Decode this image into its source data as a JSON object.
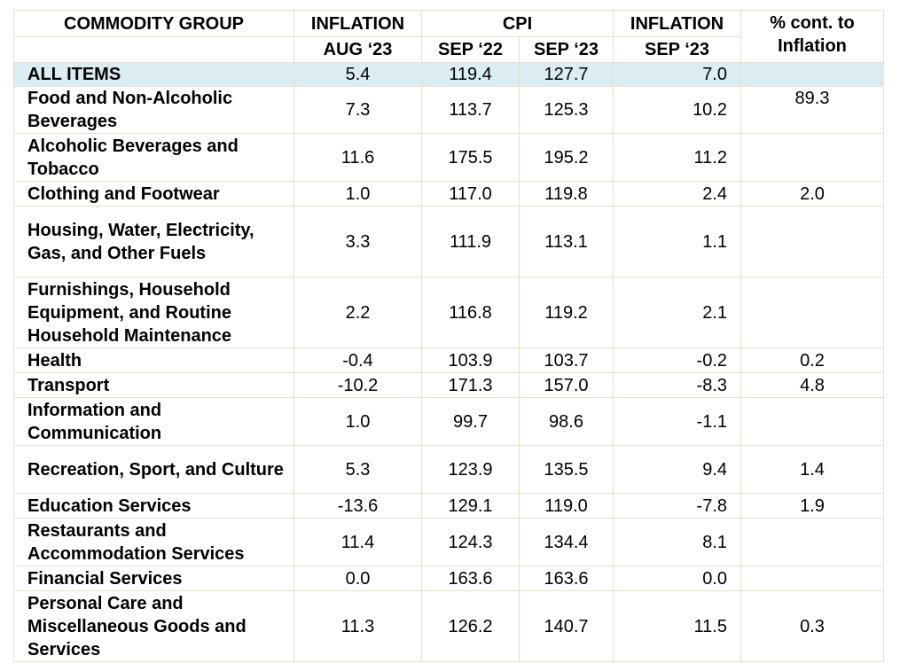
{
  "headers": {
    "group": "COMMODITY GROUP",
    "inflation_aug": "INFLATION",
    "cpi": "CPI",
    "inflation_sep": "INFLATION",
    "contrib": "% cont. to Inflation",
    "sub_aug23": "AUG ‘23",
    "sub_sep22": "SEP ‘22",
    "sub_sep23": "SEP ‘23",
    "sub_sep23_infl": "SEP ‘23"
  },
  "rows": [
    {
      "group": "ALL ITEMS",
      "aug23": "5.4",
      "cpi_sep22": "119.4",
      "cpi_sep23": "127.7",
      "sep23": "7.0",
      "contrib": ""
    },
    {
      "group": "Food and Non-Alcoholic Beverages",
      "aug23": "7.3",
      "cpi_sep22": "113.7",
      "cpi_sep23": "125.3",
      "sep23": "10.2",
      "contrib": "89.3"
    },
    {
      "group": "Alcoholic Beverages and Tobacco",
      "aug23": "11.6",
      "cpi_sep22": "175.5",
      "cpi_sep23": "195.2",
      "sep23": "11.2",
      "contrib": ""
    },
    {
      "group": "Clothing and Footwear",
      "aug23": "1.0",
      "cpi_sep22": "117.0",
      "cpi_sep23": "119.8",
      "sep23": "2.4",
      "contrib": "2.0"
    },
    {
      "group": "Housing, Water, Electricity, Gas, and Other Fuels",
      "aug23": "3.3",
      "cpi_sep22": "111.9",
      "cpi_sep23": "113.1",
      "sep23": "1.1",
      "contrib": ""
    },
    {
      "group": "Furnishings, Household Equipment, and Routine Household Maintenance",
      "aug23": "2.2",
      "cpi_sep22": "116.8",
      "cpi_sep23": "119.2",
      "sep23": "2.1",
      "contrib": ""
    },
    {
      "group": "Health",
      "aug23": "-0.4",
      "cpi_sep22": "103.9",
      "cpi_sep23": "103.7",
      "sep23": "-0.2",
      "contrib": "0.2"
    },
    {
      "group": "Transport",
      "aug23": "-10.2",
      "cpi_sep22": "171.3",
      "cpi_sep23": "157.0",
      "sep23": "-8.3",
      "contrib": "4.8"
    },
    {
      "group": "Information and Communication",
      "aug23": "1.0",
      "cpi_sep22": "99.7",
      "cpi_sep23": "98.6",
      "sep23": "-1.1",
      "contrib": ""
    },
    {
      "group": "Recreation, Sport, and Culture",
      "aug23": "5.3",
      "cpi_sep22": "123.9",
      "cpi_sep23": "135.5",
      "sep23": "9.4",
      "contrib": "1.4"
    },
    {
      "group": "Education Services",
      "aug23": "-13.6",
      "cpi_sep22": "129.1",
      "cpi_sep23": "119.0",
      "sep23": "-7.8",
      "contrib": "1.9"
    },
    {
      "group": "Restaurants and Accommodation Services",
      "aug23": "11.4",
      "cpi_sep22": "124.3",
      "cpi_sep23": "134.4",
      "sep23": "8.1",
      "contrib": ""
    },
    {
      "group": "Financial Services",
      "aug23": "0.0",
      "cpi_sep22": "163.6",
      "cpi_sep23": "163.6",
      "sep23": "0.0",
      "contrib": ""
    },
    {
      "group": "Personal Care and Miscellaneous Goods and Services",
      "aug23": "11.3",
      "cpi_sep22": "126.2",
      "cpi_sep23": "140.7",
      "sep23": "11.5",
      "contrib": "0.3"
    }
  ]
}
